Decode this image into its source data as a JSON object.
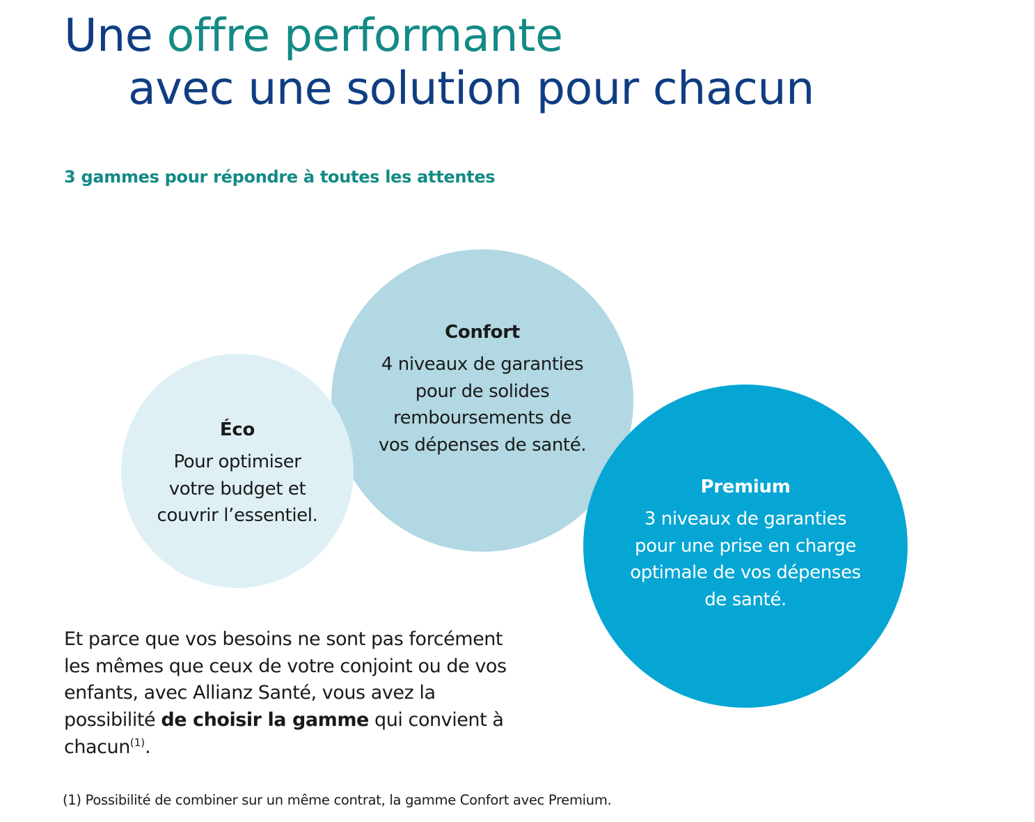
{
  "title": {
    "line1_part1": "Une ",
    "line1_part2": "offre performante",
    "line2": "avec une solution pour chacun"
  },
  "subtitle": "3 gammes pour répondre à toutes les attentes",
  "ranges": [
    {
      "name": "Éco",
      "description": "Pour optimiser\nvotre budget et\ncouvrir l’essentiel."
    },
    {
      "name": "Confort",
      "description": "4 niveaux de garanties\npour de solides\nremboursements de\nvos dépenses de santé."
    },
    {
      "name": "Premium",
      "description": "3 niveaux de garanties\npour une prise en charge\noptimale de vos dépenses\nde santé."
    }
  ],
  "body": {
    "part1": "Et parce que vos besoins ne sont pas forcément les mêmes que ceux de votre conjoint ou de vos enfants, avec Allianz Santé, vous avez la possibilité ",
    "bold": "de choisir la gamme",
    "part2": " qui convient à chacun",
    "footnote_ref": "(1)",
    "end": "."
  },
  "footnote": "(1) Possibilité de combiner sur un même contrat, la gamme Confort avec Premium.",
  "colors": {
    "title_dark": "#0f3d82",
    "accent_teal": "#138a85",
    "eco_circle": "#dff0f5",
    "confort_circle": "#b1d8e3",
    "premium_circle": "#06a6d4"
  }
}
